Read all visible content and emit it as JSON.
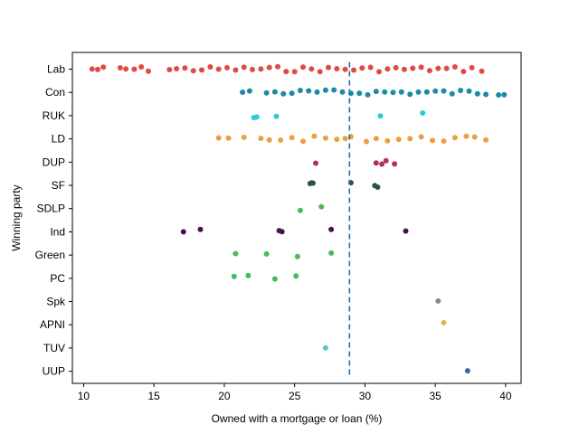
{
  "chart_data": {
    "type": "scatter",
    "xlabel": "Owned with a mortgage or loan (%)",
    "ylabel": "Winning party",
    "xlim": [
      9.2,
      41.1
    ],
    "xticks": [
      10,
      15,
      20,
      25,
      30,
      35,
      40
    ],
    "reference_line": {
      "x": 28.9,
      "style": "dashed",
      "color": "#1f6fb2"
    },
    "categories": [
      "Lab",
      "Con",
      "RUK",
      "LD",
      "DUP",
      "SF",
      "SDLP",
      "Ind",
      "Green",
      "PC",
      "Spk",
      "APNI",
      "TUV",
      "UUP"
    ],
    "series": [
      {
        "category": "Lab",
        "color": "#e04a45",
        "x": [
          10.6,
          11.0,
          11.4,
          12.6,
          13.0,
          13.6,
          14.1,
          14.6,
          16.1,
          16.6,
          17.2,
          17.8,
          18.4,
          19.0,
          19.6,
          20.2,
          20.8,
          21.4,
          22.0,
          22.6,
          23.2,
          23.8,
          24.4,
          25.0,
          25.6,
          26.2,
          26.8,
          27.4,
          28.0,
          28.6,
          29.2,
          29.8,
          30.4,
          31.0,
          31.6,
          32.2,
          32.8,
          33.4,
          34.0,
          34.6,
          35.2,
          35.8,
          36.4,
          37.0,
          37.6,
          38.3
        ]
      },
      {
        "category": "Con",
        "color": "#1a8aa8",
        "x": [
          21.3,
          21.8,
          23.0,
          23.6,
          24.2,
          24.8,
          25.4,
          26.0,
          26.6,
          27.2,
          27.8,
          28.4,
          29.0,
          29.6,
          30.2,
          30.8,
          31.4,
          32.0,
          32.6,
          33.2,
          33.8,
          34.4,
          35.0,
          35.6,
          36.2,
          36.8,
          37.4,
          38.0,
          38.6,
          39.5,
          39.9
        ]
      },
      {
        "category": "RUK",
        "color": "#2cc9d9",
        "x": [
          22.1,
          22.3,
          23.7,
          31.1,
          34.1
        ]
      },
      {
        "category": "LD",
        "color": "#e8a043",
        "x": [
          19.6,
          20.3,
          21.4,
          22.6,
          23.2,
          24.0,
          24.8,
          25.6,
          26.4,
          27.2,
          28.0,
          28.6,
          29.0,
          30.1,
          30.8,
          31.6,
          32.4,
          33.2,
          34.0,
          34.8,
          35.6,
          36.4,
          37.2,
          37.8,
          38.6
        ]
      },
      {
        "category": "DUP",
        "color": "#b5314f",
        "x": [
          26.5,
          30.8,
          31.2,
          31.5,
          32.1
        ]
      },
      {
        "category": "SF",
        "color": "#295443",
        "x": [
          26.1,
          26.2,
          26.3,
          29.0,
          30.7,
          30.9
        ]
      },
      {
        "category": "SDLP",
        "color": "#4cba55",
        "x": [
          25.4,
          26.9
        ]
      },
      {
        "category": "Ind",
        "color": "#4a0f4f",
        "x": [
          17.1,
          18.3,
          23.9,
          24.1,
          27.6,
          32.9
        ]
      },
      {
        "category": "Green",
        "color": "#4cba55",
        "x": [
          20.8,
          23.0,
          25.2,
          27.6
        ]
      },
      {
        "category": "PC",
        "color": "#43b86c",
        "x": [
          20.7,
          21.7,
          23.6,
          25.1
        ]
      },
      {
        "category": "Spk",
        "color": "#898989",
        "x": [
          35.2
        ]
      },
      {
        "category": "APNI",
        "color": "#e8b04a",
        "x": [
          35.6
        ]
      },
      {
        "category": "TUV",
        "color": "#5bc7c4",
        "x": [
          27.2
        ]
      },
      {
        "category": "UUP",
        "color": "#3a68a8",
        "x": [
          37.3
        ]
      }
    ]
  }
}
